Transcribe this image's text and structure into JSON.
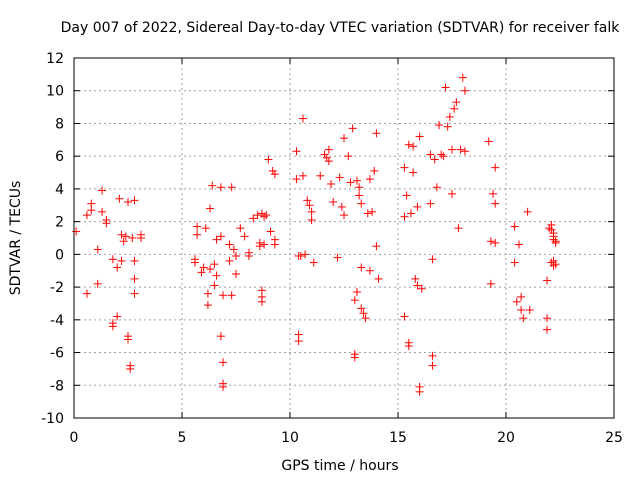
{
  "chart_data": {
    "type": "scatter",
    "title": "Day 007 of 2022, Sidereal Day-to-day VTEC variation (SDTVAR) for receiver falk",
    "xlabel": "GPS time / hours",
    "ylabel": "SDTVAR / TECUs",
    "xlim": [
      0,
      25
    ],
    "ylim": [
      -10,
      12
    ],
    "xticks": [
      0,
      5,
      10,
      15,
      20,
      25
    ],
    "xtick_labels": [
      "0",
      "5",
      "10",
      "15",
      "20",
      "25"
    ],
    "yticks": [
      -10,
      -8,
      -6,
      -4,
      -2,
      0,
      2,
      4,
      6,
      8,
      10,
      12
    ],
    "ytick_labels": [
      "-10",
      "-8",
      "-6",
      "-4",
      "-2",
      "0",
      "2",
      "4",
      "6",
      "8",
      "10",
      "12"
    ],
    "grid": true,
    "marker": "plus",
    "series": [
      {
        "name": "SDTVAR",
        "color": "#ff0000",
        "points": [
          [
            0.1,
            1.4
          ],
          [
            0.6,
            2.4
          ],
          [
            0.6,
            -2.4
          ],
          [
            0.8,
            3.1
          ],
          [
            0.8,
            2.7
          ],
          [
            1.1,
            0.3
          ],
          [
            1.1,
            -1.8
          ],
          [
            1.3,
            3.9
          ],
          [
            1.3,
            2.6
          ],
          [
            1.5,
            2.1
          ],
          [
            1.5,
            1.9
          ],
          [
            1.8,
            -0.3
          ],
          [
            1.8,
            -4.2
          ],
          [
            1.8,
            -4.4
          ],
          [
            2.0,
            -3.8
          ],
          [
            2.0,
            -0.8
          ],
          [
            2.1,
            3.4
          ],
          [
            2.2,
            -0.4
          ],
          [
            2.2,
            1.2
          ],
          [
            2.3,
            0.8
          ],
          [
            2.4,
            1.1
          ],
          [
            2.5,
            3.2
          ],
          [
            2.5,
            -5.0
          ],
          [
            2.5,
            -5.2
          ],
          [
            2.6,
            -6.8
          ],
          [
            2.6,
            -7.0
          ],
          [
            2.7,
            1.0
          ],
          [
            2.8,
            3.3
          ],
          [
            2.8,
            -0.4
          ],
          [
            2.8,
            -1.5
          ],
          [
            2.8,
            -2.4
          ],
          [
            3.1,
            1.2
          ],
          [
            3.1,
            1.0
          ],
          [
            5.6,
            -0.3
          ],
          [
            5.6,
            -0.5
          ],
          [
            5.7,
            1.2
          ],
          [
            5.7,
            1.7
          ],
          [
            5.9,
            -1.1
          ],
          [
            6.0,
            -0.8
          ],
          [
            6.1,
            1.6
          ],
          [
            6.2,
            -2.4
          ],
          [
            6.2,
            -3.1
          ],
          [
            6.3,
            -0.9
          ],
          [
            6.3,
            2.8
          ],
          [
            6.4,
            4.2
          ],
          [
            6.5,
            -0.6
          ],
          [
            6.5,
            -1.9
          ],
          [
            6.6,
            -1.3
          ],
          [
            6.6,
            0.9
          ],
          [
            6.8,
            4.1
          ],
          [
            6.8,
            1.1
          ],
          [
            6.8,
            -5.0
          ],
          [
            6.9,
            -6.6
          ],
          [
            6.9,
            -7.9
          ],
          [
            6.9,
            -8.1
          ],
          [
            6.9,
            -2.5
          ],
          [
            7.2,
            0.6
          ],
          [
            7.2,
            -0.4
          ],
          [
            7.3,
            4.1
          ],
          [
            7.3,
            -2.5
          ],
          [
            7.4,
            0.3
          ],
          [
            7.5,
            -0.1
          ],
          [
            7.5,
            -1.2
          ],
          [
            7.7,
            1.6
          ],
          [
            7.9,
            1.1
          ],
          [
            8.1,
            0.1
          ],
          [
            8.1,
            -0.1
          ],
          [
            8.3,
            2.2
          ],
          [
            8.5,
            2.4
          ],
          [
            8.6,
            0.7
          ],
          [
            8.6,
            0.5
          ],
          [
            8.7,
            2.5
          ],
          [
            8.7,
            -2.2
          ],
          [
            8.7,
            -2.6
          ],
          [
            8.7,
            -2.9
          ],
          [
            8.8,
            2.3
          ],
          [
            8.8,
            0.6
          ],
          [
            8.9,
            2.4
          ],
          [
            9.0,
            5.8
          ],
          [
            9.1,
            1.4
          ],
          [
            9.2,
            5.1
          ],
          [
            9.3,
            4.9
          ],
          [
            9.3,
            0.9
          ],
          [
            9.3,
            0.6
          ],
          [
            10.3,
            6.3
          ],
          [
            10.3,
            4.6
          ],
          [
            10.4,
            -0.1
          ],
          [
            10.4,
            -4.9
          ],
          [
            10.4,
            -5.3
          ],
          [
            10.5,
            -0.1
          ],
          [
            10.6,
            8.3
          ],
          [
            10.6,
            4.8
          ],
          [
            10.7,
            0.0
          ],
          [
            10.8,
            3.3
          ],
          [
            10.9,
            3.0
          ],
          [
            11.0,
            2.6
          ],
          [
            11.0,
            2.1
          ],
          [
            11.1,
            -0.5
          ],
          [
            11.4,
            4.8
          ],
          [
            11.6,
            6.1
          ],
          [
            11.7,
            5.9
          ],
          [
            11.8,
            5.7
          ],
          [
            11.8,
            6.4
          ],
          [
            11.9,
            4.3
          ],
          [
            12.0,
            3.2
          ],
          [
            12.2,
            -0.2
          ],
          [
            12.3,
            4.7
          ],
          [
            12.4,
            2.9
          ],
          [
            12.5,
            7.1
          ],
          [
            12.5,
            2.4
          ],
          [
            12.7,
            6.0
          ],
          [
            12.8,
            4.4
          ],
          [
            12.9,
            7.7
          ],
          [
            13.0,
            -2.8
          ],
          [
            13.0,
            -6.1
          ],
          [
            13.0,
            -6.3
          ],
          [
            13.1,
            4.5
          ],
          [
            13.1,
            -2.3
          ],
          [
            13.2,
            4.1
          ],
          [
            13.2,
            3.6
          ],
          [
            13.3,
            3.1
          ],
          [
            13.3,
            -0.8
          ],
          [
            13.3,
            -3.3
          ],
          [
            13.4,
            -3.6
          ],
          [
            13.5,
            -3.9
          ],
          [
            13.6,
            2.5
          ],
          [
            13.7,
            4.6
          ],
          [
            13.7,
            -1.0
          ],
          [
            13.8,
            2.6
          ],
          [
            13.9,
            5.1
          ],
          [
            14.0,
            7.4
          ],
          [
            14.0,
            0.5
          ],
          [
            14.1,
            -1.5
          ],
          [
            15.3,
            5.3
          ],
          [
            15.3,
            2.3
          ],
          [
            15.3,
            -3.8
          ],
          [
            15.4,
            3.6
          ],
          [
            15.5,
            6.7
          ],
          [
            15.5,
            -5.4
          ],
          [
            15.5,
            -5.6
          ],
          [
            15.6,
            2.5
          ],
          [
            15.7,
            6.6
          ],
          [
            15.7,
            5.0
          ],
          [
            15.8,
            -1.5
          ],
          [
            15.9,
            -1.9
          ],
          [
            15.9,
            2.9
          ],
          [
            16.0,
            7.2
          ],
          [
            16.0,
            -8.1
          ],
          [
            16.0,
            -8.4
          ],
          [
            16.1,
            -2.1
          ],
          [
            16.5,
            6.1
          ],
          [
            16.5,
            3.1
          ],
          [
            16.6,
            -0.3
          ],
          [
            16.6,
            -6.2
          ],
          [
            16.6,
            -6.8
          ],
          [
            16.7,
            5.8
          ],
          [
            16.8,
            4.1
          ],
          [
            16.9,
            7.9
          ],
          [
            17.0,
            6.1
          ],
          [
            17.1,
            6.0
          ],
          [
            17.2,
            10.2
          ],
          [
            17.3,
            7.8
          ],
          [
            17.4,
            8.4
          ],
          [
            17.5,
            6.4
          ],
          [
            17.5,
            3.7
          ],
          [
            17.6,
            8.9
          ],
          [
            17.7,
            9.3
          ],
          [
            17.8,
            1.6
          ],
          [
            17.9,
            6.4
          ],
          [
            18.0,
            10.8
          ],
          [
            18.1,
            10.0
          ],
          [
            18.1,
            6.3
          ],
          [
            19.2,
            6.9
          ],
          [
            19.3,
            0.8
          ],
          [
            19.3,
            -1.8
          ],
          [
            19.4,
            3.7
          ],
          [
            19.5,
            3.1
          ],
          [
            19.5,
            5.3
          ],
          [
            19.5,
            0.7
          ],
          [
            20.4,
            -0.5
          ],
          [
            20.4,
            1.7
          ],
          [
            20.5,
            -2.9
          ],
          [
            20.6,
            0.6
          ],
          [
            20.7,
            -2.6
          ],
          [
            20.7,
            -3.4
          ],
          [
            20.8,
            -3.9
          ],
          [
            21.0,
            2.6
          ],
          [
            21.1,
            -3.4
          ],
          [
            21.9,
            -1.6
          ],
          [
            21.9,
            -3.9
          ],
          [
            21.9,
            -4.6
          ],
          [
            22.0,
            1.6
          ],
          [
            22.1,
            1.8
          ],
          [
            22.1,
            1.5
          ],
          [
            22.2,
            1.3
          ],
          [
            22.2,
            1.1
          ],
          [
            22.2,
            0.9
          ],
          [
            22.3,
            0.8
          ],
          [
            22.3,
            0.7
          ],
          [
            22.1,
            -0.5
          ],
          [
            22.2,
            -0.7
          ],
          [
            22.3,
            -0.6
          ],
          [
            22.2,
            -0.4
          ]
        ]
      }
    ]
  }
}
